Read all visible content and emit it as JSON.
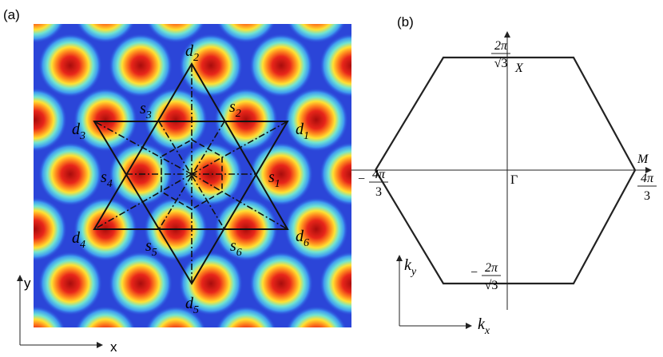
{
  "panel_a": {
    "label": "(a)",
    "x_axis": "x",
    "y_axis": "y",
    "points": [
      {
        "letter": "d",
        "sub": "1"
      },
      {
        "letter": "d",
        "sub": "2"
      },
      {
        "letter": "d",
        "sub": "3"
      },
      {
        "letter": "d",
        "sub": "4"
      },
      {
        "letter": "d",
        "sub": "5"
      },
      {
        "letter": "d",
        "sub": "6"
      },
      {
        "letter": "s",
        "sub": "1"
      },
      {
        "letter": "s",
        "sub": "2"
      },
      {
        "letter": "s",
        "sub": "3"
      },
      {
        "letter": "s",
        "sub": "4"
      },
      {
        "letter": "s",
        "sub": "5"
      },
      {
        "letter": "s",
        "sub": "6"
      }
    ]
  },
  "panel_b": {
    "label": "(b)",
    "top": {
      "num": "2π",
      "den": "√3"
    },
    "bottom": {
      "sign": "−",
      "num": "2π",
      "den": "√3"
    },
    "left": {
      "sign": "−",
      "num": "4π",
      "den": "3"
    },
    "right": {
      "num": "4π",
      "den": "3"
    },
    "x_point": "X",
    "m_point": "M",
    "gamma": "Γ",
    "ky": {
      "letter": "k",
      "sub": "y"
    },
    "kx": {
      "letter": "k",
      "sub": "x"
    }
  }
}
